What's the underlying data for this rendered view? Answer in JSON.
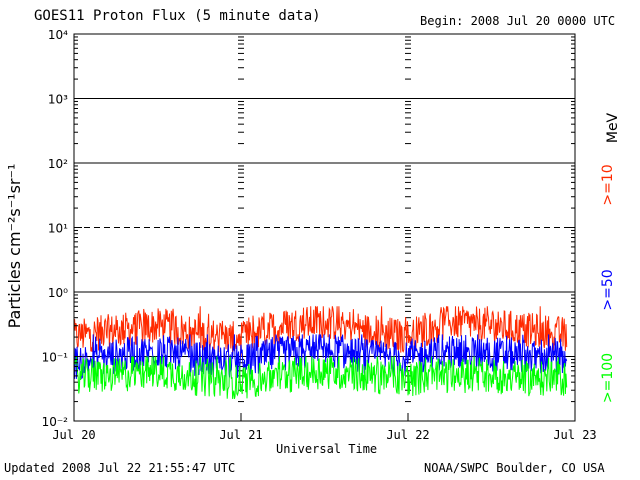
{
  "header": {
    "title": "GOES11 Proton Flux (5 minute data)",
    "begin": "Begin: 2008 Jul 20 0000 UTC"
  },
  "footer": {
    "updated": "Updated 2008 Jul 22 21:55:47 UTC",
    "credit": "NOAA/SWPC Boulder, CO USA"
  },
  "chart_data": {
    "type": "line",
    "ylabel": "Particles cm⁻²s⁻¹sr⁻¹",
    "xlabel": "Universal Time",
    "yscale": "log",
    "ylim": [
      0.01,
      10000
    ],
    "xlim": [
      0,
      3
    ],
    "x_unit": "days since Jul 20 0000 UTC",
    "categories": [
      "Jul 20",
      "Jul 21",
      "Jul 22",
      "Jul 23"
    ],
    "y_ticks": [
      "10⁻²",
      "10⁻¹",
      "10⁰",
      "10¹",
      "10²",
      "10³",
      "10⁴"
    ],
    "energy_unit_label": "MeV",
    "thresholds": [
      {
        "label": "1",
        "value": 1,
        "style": "solid"
      },
      {
        "label": "10",
        "value": 10,
        "style": "dashed"
      },
      {
        "label": "100",
        "value": 100,
        "style": "solid"
      },
      {
        "label": "1000",
        "value": 1000,
        "style": "solid"
      },
      {
        "label": "0.1",
        "value": 0.1,
        "style": "solid"
      }
    ],
    "series": [
      {
        "name": ">=10",
        "color": "#ff2a00",
        "baseline": 0.18,
        "min": 0.1,
        "max": 0.6,
        "x": [
          0.0,
          0.25,
          0.5,
          0.75,
          1.0,
          1.25,
          1.5,
          1.75,
          2.0,
          2.25,
          2.5,
          2.75,
          2.95
        ],
        "values": [
          0.2,
          0.25,
          0.3,
          0.22,
          0.18,
          0.3,
          0.35,
          0.25,
          0.2,
          0.35,
          0.3,
          0.25,
          0.22
        ]
      },
      {
        "name": ">=50",
        "color": "#0000ff",
        "baseline": 0.08,
        "min": 0.045,
        "max": 0.22,
        "x": [
          0.0,
          0.25,
          0.5,
          0.75,
          1.0,
          1.25,
          1.5,
          1.75,
          2.0,
          2.25,
          2.5,
          2.75,
          2.95
        ],
        "values": [
          0.08,
          0.1,
          0.12,
          0.09,
          0.08,
          0.11,
          0.13,
          0.1,
          0.09,
          0.12,
          0.11,
          0.1,
          0.09
        ]
      },
      {
        "name": ">=100",
        "color": "#00ff00",
        "baseline": 0.045,
        "min": 0.022,
        "max": 0.1,
        "x": [
          0.0,
          0.25,
          0.5,
          0.75,
          1.0,
          1.25,
          1.5,
          1.75,
          2.0,
          2.25,
          2.5,
          2.75,
          2.95
        ],
        "values": [
          0.05,
          0.05,
          0.06,
          0.045,
          0.04,
          0.05,
          0.06,
          0.05,
          0.045,
          0.05,
          0.05,
          0.045,
          0.045
        ]
      }
    ]
  }
}
